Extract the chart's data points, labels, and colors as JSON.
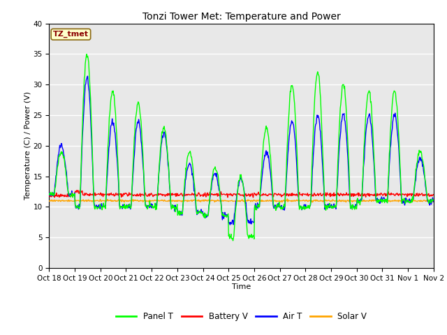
{
  "title": "Tonzi Tower Met: Temperature and Power",
  "xlabel": "Time",
  "ylabel": "Temperature (C) / Power (V)",
  "ylim": [
    0,
    40
  ],
  "yticks": [
    0,
    5,
    10,
    15,
    20,
    25,
    30,
    35,
    40
  ],
  "xtick_labels": [
    "Oct 18",
    "Oct 19",
    "Oct 20",
    "Oct 21",
    "Oct 22",
    "Oct 23",
    "Oct 24",
    "Oct 25",
    "Oct 26",
    "Oct 27",
    "Oct 28",
    "Oct 29",
    "Oct 30",
    "Oct 31",
    "Nov 1",
    "Nov 2"
  ],
  "watermark_text": "TZ_tmet",
  "watermark_color": "#8B0000",
  "watermark_bg": "#FFFFCC",
  "watermark_edge": "#8B6914",
  "bg_color": "#E8E8E8",
  "panel_t_color": "#00FF00",
  "battery_v_color": "#FF0000",
  "air_t_color": "#0000FF",
  "solar_v_color": "#FFA500",
  "legend_labels": [
    "Panel T",
    "Battery V",
    "Air T",
    "Solar V"
  ],
  "title_fontsize": 10,
  "axis_fontsize": 8,
  "tick_fontsize": 7.5
}
